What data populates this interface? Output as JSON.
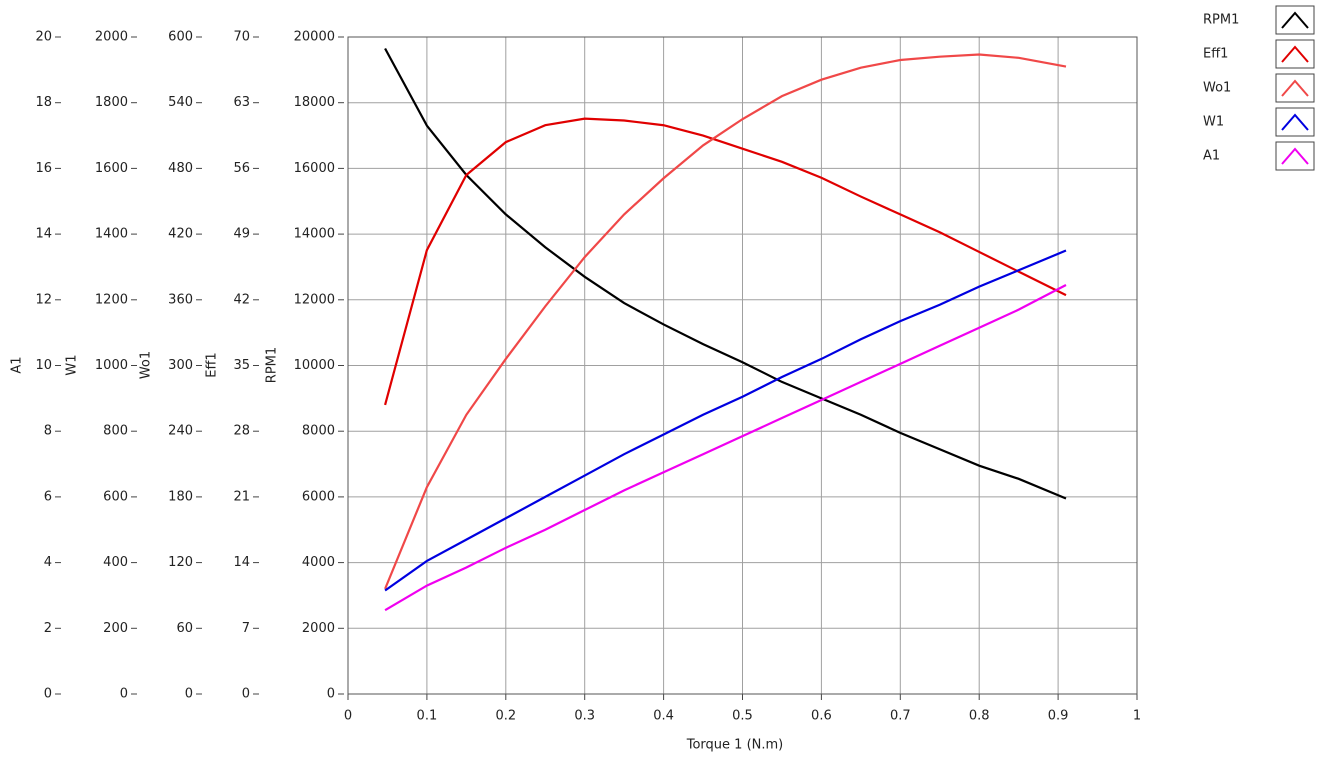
{
  "chart_data": {
    "type": "line",
    "x_label": "Torque 1 (N.m)",
    "xlim": [
      0,
      1
    ],
    "xticks": [
      0,
      0.1,
      0.2,
      0.3,
      0.4,
      0.5,
      0.6,
      0.7,
      0.8,
      0.9,
      1
    ],
    "grid": true,
    "legend": "top-right",
    "axes": [
      {
        "label": "A1",
        "ylim": [
          0,
          20
        ],
        "yticks": [
          0,
          2,
          4,
          6,
          8,
          10,
          12,
          14,
          16,
          18,
          20
        ]
      },
      {
        "label": "W1",
        "ylim": [
          0,
          2000
        ],
        "yticks": [
          0,
          200,
          400,
          600,
          800,
          1000,
          1200,
          1400,
          1600,
          1800,
          2000
        ]
      },
      {
        "label": "Wo1",
        "ylim": [
          0,
          600
        ],
        "yticks": [
          0,
          60,
          120,
          180,
          240,
          300,
          360,
          420,
          480,
          540,
          600
        ]
      },
      {
        "label": "Eff1",
        "ylim": [
          0,
          70
        ],
        "yticks": [
          0,
          7,
          14,
          21,
          28,
          35,
          42,
          49,
          56,
          63,
          70
        ]
      },
      {
        "label": "RPM1",
        "ylim": [
          0,
          20000
        ],
        "yticks": [
          0,
          2000,
          4000,
          6000,
          8000,
          10000,
          12000,
          14000,
          16000,
          18000,
          20000
        ]
      }
    ],
    "x": [
      0.047,
      0.1,
      0.15,
      0.2,
      0.25,
      0.3,
      0.35,
      0.4,
      0.45,
      0.5,
      0.55,
      0.6,
      0.65,
      0.7,
      0.75,
      0.8,
      0.85,
      0.91
    ],
    "series": [
      {
        "name": "RPM1",
        "color": "#000000",
        "axis": 4,
        "values": [
          19650,
          17300,
          15800,
          14600,
          13600,
          12700,
          11900,
          11250,
          10650,
          10100,
          9500,
          9000,
          8500,
          7950,
          7450,
          6950,
          6550,
          5950
        ]
      },
      {
        "name": "Eff1",
        "color": "#e00000",
        "axis": 3,
        "values": [
          30.8,
          47.3,
          55.3,
          58.8,
          60.6,
          61.3,
          61.1,
          60.6,
          59.5,
          58.1,
          56.7,
          55.0,
          53.0,
          51.1,
          49.2,
          47.1,
          45.0,
          42.5
        ]
      },
      {
        "name": "Wo1",
        "color": "#f04848",
        "axis": 2,
        "values": [
          96,
          189,
          255,
          306,
          354,
          399,
          438,
          471,
          501,
          525,
          546,
          561,
          572,
          579,
          582,
          584,
          581,
          573
        ]
      },
      {
        "name": "W1",
        "color": "#0000e0",
        "axis": 1,
        "values": [
          315,
          405,
          470,
          535,
          600,
          665,
          730,
          790,
          850,
          905,
          965,
          1020,
          1080,
          1135,
          1185,
          1240,
          1290,
          1350
        ]
      },
      {
        "name": "A1",
        "color": "#f000f0",
        "axis": 0,
        "values": [
          2.55,
          3.3,
          3.85,
          4.45,
          5.0,
          5.6,
          6.2,
          6.75,
          7.3,
          7.85,
          8.4,
          8.95,
          9.5,
          10.05,
          10.6,
          11.15,
          11.7,
          12.45
        ]
      }
    ]
  }
}
